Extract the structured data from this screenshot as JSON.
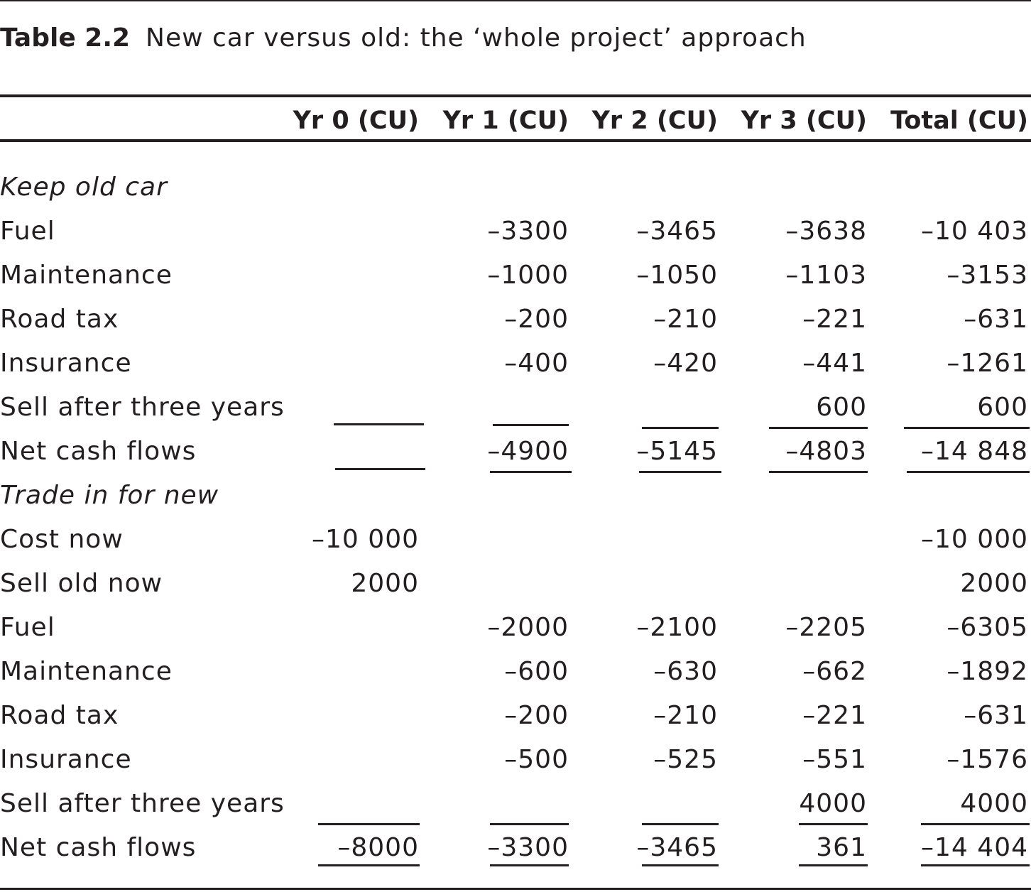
{
  "table": {
    "number": "Table 2.2",
    "title": "New car versus old: the ‘whole project’ approach",
    "columns": [
      "",
      "Yr 0 (CU)",
      "Yr 1 (CU)",
      "Yr 2 (CU)",
      "Yr 3 (CU)",
      "Total (CU)"
    ],
    "sections": [
      {
        "name": "Keep old car",
        "rows": [
          {
            "label": "Fuel",
            "values": [
              "",
              "–3300",
              "–3465",
              "–3638",
              "–10 403"
            ]
          },
          {
            "label": "Maintenance",
            "values": [
              "",
              "–1000",
              "–1050",
              "–1103",
              "–3153"
            ]
          },
          {
            "label": "Road tax",
            "values": [
              "",
              "–200",
              "–210",
              "–221",
              "–631"
            ]
          },
          {
            "label": "Insurance",
            "values": [
              "",
              "–400",
              "–420",
              "–441",
              "–1261"
            ]
          },
          {
            "label": "Sell after three years",
            "values": [
              "",
              "",
              "",
              "600",
              "600"
            ]
          },
          {
            "label": "Net cash flows",
            "values": [
              "",
              "–4900",
              "–5145",
              "–4803",
              "–14 848"
            ]
          }
        ]
      },
      {
        "name": "Trade in for new",
        "rows": [
          {
            "label": "Cost now",
            "values": [
              "–10 000",
              "",
              "",
              "",
              "–10 000"
            ]
          },
          {
            "label": "Sell old now",
            "values": [
              "2000",
              "",
              "",
              "",
              "2000"
            ]
          },
          {
            "label": "Fuel",
            "values": [
              "",
              "–2000",
              "–2100",
              "–2205",
              "–6305"
            ]
          },
          {
            "label": "Maintenance",
            "values": [
              "",
              "–600",
              "–630",
              "–662",
              "–1892"
            ]
          },
          {
            "label": "Road tax",
            "values": [
              "",
              "–200",
              "–210",
              "–221",
              "–631"
            ]
          },
          {
            "label": "Insurance",
            "values": [
              "",
              "–500",
              "–525",
              "–551",
              "–1576"
            ]
          },
          {
            "label": "Sell after three years",
            "values": [
              "",
              "",
              "",
              "4000",
              "4000"
            ]
          },
          {
            "label": "Net cash flows",
            "values": [
              "–8000",
              "–3300",
              "–3465",
              "361",
              "–14 404"
            ]
          }
        ]
      }
    ]
  }
}
